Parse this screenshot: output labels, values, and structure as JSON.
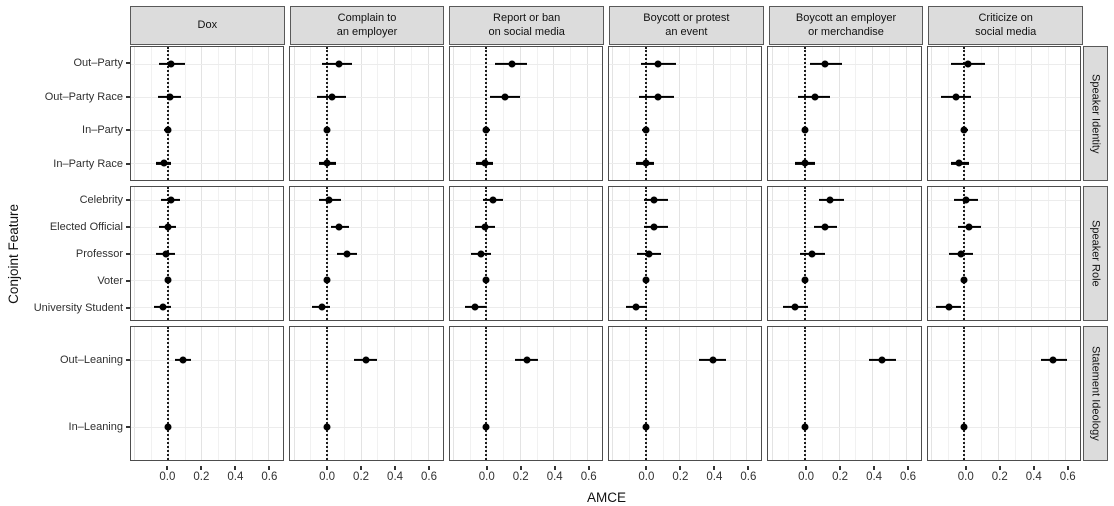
{
  "chart_data": {
    "type": "scatter",
    "subtype": "dot-whisker-faceted",
    "title": "",
    "xlabel": "AMCE",
    "ylabel": "Conjoint Feature",
    "x_domain": [
      -0.22,
      0.69
    ],
    "x_ticks": [
      0.0,
      0.2,
      0.4,
      0.6
    ],
    "x_tick_labels": [
      "0.0",
      "0.2",
      "0.4",
      "0.6"
    ],
    "grid_major": [
      -0.2,
      0.0,
      0.2,
      0.4,
      0.6
    ],
    "grid_minor": [
      -0.1,
      0.1,
      0.3,
      0.5
    ],
    "zero_line": 0,
    "grid": "on",
    "col_facets": [
      "Dox",
      "Complain to\nan employer",
      "Report or ban\non social media",
      "Boycott or protest\nan event",
      "Boycott an employer\nor merchandise",
      "Criticize on\nsocial media"
    ],
    "row_facets": [
      {
        "label": "Speaker Identity",
        "categories": [
          "Out–Party",
          "Out–Party Race",
          "In–Party",
          "In–Party Race"
        ]
      },
      {
        "label": "Speaker Role",
        "categories": [
          "Celebrity",
          "Elected Official",
          "Professor",
          "Voter",
          "University Student"
        ]
      },
      {
        "label": "Statement Ideology",
        "categories": [
          "Out–Leaning",
          "In–Leaning"
        ]
      }
    ],
    "value_format": "[estimate, ci_low, ci_high]",
    "columns": [
      {
        "outcome": "Dox",
        "rows": [
          [
            [
              0.02,
              -0.05,
              0.1
            ],
            [
              0.01,
              -0.06,
              0.08
            ],
            [
              0.0,
              -0.02,
              0.02
            ],
            [
              -0.02,
              -0.07,
              0.02
            ]
          ],
          [
            [
              0.02,
              -0.04,
              0.07
            ],
            [
              0.0,
              -0.05,
              0.05
            ],
            [
              -0.01,
              -0.07,
              0.04
            ],
            [
              0.0,
              -0.01,
              0.01
            ],
            [
              -0.03,
              -0.08,
              0.02
            ]
          ],
          [
            [
              0.09,
              0.04,
              0.14
            ],
            [
              0.0,
              -0.01,
              0.01
            ]
          ]
        ]
      },
      {
        "outcome": "Complain to an employer",
        "rows": [
          [
            [
              0.07,
              -0.03,
              0.15
            ],
            [
              0.03,
              -0.06,
              0.11
            ],
            [
              0.0,
              -0.02,
              0.02
            ],
            [
              0.0,
              -0.05,
              0.05
            ]
          ],
          [
            [
              0.01,
              -0.05,
              0.08
            ],
            [
              0.07,
              0.02,
              0.13
            ],
            [
              0.12,
              0.06,
              0.18
            ],
            [
              0.0,
              -0.01,
              0.01
            ],
            [
              -0.03,
              -0.09,
              0.02
            ]
          ],
          [
            [
              0.23,
              0.16,
              0.3
            ],
            [
              0.0,
              -0.01,
              0.01
            ]
          ]
        ]
      },
      {
        "outcome": "Report or ban on social media",
        "rows": [
          [
            [
              0.15,
              0.05,
              0.24
            ],
            [
              0.11,
              0.02,
              0.2
            ],
            [
              0.0,
              -0.02,
              0.02
            ],
            [
              -0.01,
              -0.06,
              0.04
            ]
          ],
          [
            [
              0.04,
              -0.02,
              0.1
            ],
            [
              -0.01,
              -0.07,
              0.05
            ],
            [
              -0.03,
              -0.09,
              0.03
            ],
            [
              0.0,
              -0.01,
              0.01
            ],
            [
              -0.07,
              -0.13,
              0.0
            ]
          ],
          [
            [
              0.24,
              0.17,
              0.31
            ],
            [
              0.0,
              -0.01,
              0.01
            ]
          ]
        ]
      },
      {
        "outcome": "Boycott or protest an event",
        "rows": [
          [
            [
              0.07,
              -0.03,
              0.18
            ],
            [
              0.07,
              -0.04,
              0.17
            ],
            [
              0.0,
              -0.02,
              0.02
            ],
            [
              0.0,
              -0.06,
              0.05
            ]
          ],
          [
            [
              0.05,
              -0.01,
              0.13
            ],
            [
              0.05,
              -0.01,
              0.13
            ],
            [
              0.02,
              -0.05,
              0.09
            ],
            [
              0.0,
              -0.01,
              0.01
            ],
            [
              -0.06,
              -0.12,
              0.01
            ]
          ],
          [
            [
              0.4,
              0.32,
              0.48
            ],
            [
              0.0,
              -0.01,
              0.01
            ]
          ]
        ]
      },
      {
        "outcome": "Boycott an employer or merchandise",
        "rows": [
          [
            [
              0.12,
              0.03,
              0.22
            ],
            [
              0.06,
              -0.04,
              0.15
            ],
            [
              0.0,
              -0.02,
              0.02
            ],
            [
              0.0,
              -0.06,
              0.06
            ]
          ],
          [
            [
              0.15,
              0.08,
              0.23
            ],
            [
              0.12,
              0.05,
              0.19
            ],
            [
              0.04,
              -0.03,
              0.12
            ],
            [
              0.0,
              -0.01,
              0.01
            ],
            [
              -0.06,
              -0.13,
              0.02
            ]
          ],
          [
            [
              0.46,
              0.38,
              0.54
            ],
            [
              0.0,
              -0.01,
              0.01
            ]
          ]
        ]
      },
      {
        "outcome": "Criticize on social media",
        "rows": [
          [
            [
              0.02,
              -0.08,
              0.12
            ],
            [
              -0.05,
              -0.14,
              0.04
            ],
            [
              0.0,
              -0.02,
              0.02
            ],
            [
              -0.03,
              -0.08,
              0.03
            ]
          ],
          [
            [
              0.01,
              -0.06,
              0.08
            ],
            [
              0.03,
              -0.04,
              0.1
            ],
            [
              -0.02,
              -0.09,
              0.05
            ],
            [
              0.0,
              -0.01,
              0.01
            ],
            [
              -0.09,
              -0.17,
              -0.02
            ]
          ],
          [
            [
              0.53,
              0.46,
              0.61
            ],
            [
              0.0,
              -0.01,
              0.01
            ]
          ]
        ]
      }
    ],
    "legend": "none",
    "colors": {
      "point": "#000000",
      "error_bar": "#000000",
      "zero_line": "#1c1c1c",
      "strip_background": "#dcdcdc",
      "panel_border": "#4d4d4d",
      "grid_major": "#e3e3e3",
      "grid_minor": "#f1f1f1",
      "axis_text": "#303030",
      "strip_text": "#111111"
    }
  }
}
